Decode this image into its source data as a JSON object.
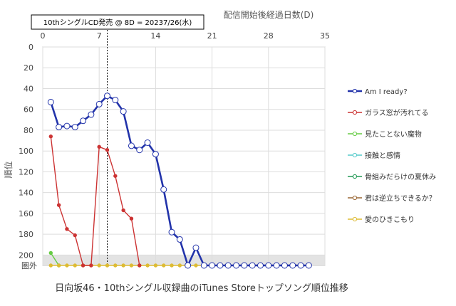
{
  "chart_data": {
    "type": "line",
    "title": "日向坂46・10thシングル収録曲のiTunes Storeトップソング順位推移",
    "xlabel": "配信開始後経過日数(D)",
    "ylabel": "順位",
    "xlim": [
      0,
      35
    ],
    "ylim": [
      0,
      210
    ],
    "y_inverted": true,
    "x_ticks": [
      0,
      7,
      14,
      21,
      28,
      35
    ],
    "y_ticks": [
      0,
      20,
      40,
      60,
      80,
      100,
      120,
      140,
      160,
      180,
      200
    ],
    "y_out_label": "圏外",
    "out_value": 210,
    "out_band": [
      200,
      210
    ],
    "grid": true,
    "legend_position": "right",
    "annotation": {
      "text": "10thシングルCD発売 @ 8D = 20237/26(水)",
      "x": 8
    },
    "series": [
      {
        "name": "Am I ready?",
        "color": "#2233aa",
        "points": [
          [
            1,
            53
          ],
          [
            2,
            77
          ],
          [
            3,
            76
          ],
          [
            4,
            77
          ],
          [
            5,
            71
          ],
          [
            6,
            65
          ],
          [
            7,
            55
          ],
          [
            8,
            47
          ],
          [
            9,
            51
          ],
          [
            10,
            62
          ],
          [
            11,
            95
          ],
          [
            12,
            99
          ],
          [
            13,
            92
          ],
          [
            14,
            103
          ],
          [
            15,
            137
          ],
          [
            16,
            178
          ],
          [
            17,
            185
          ],
          [
            18,
            210
          ],
          [
            19,
            193
          ],
          [
            20,
            210
          ],
          [
            21,
            210
          ],
          [
            22,
            210
          ],
          [
            23,
            210
          ],
          [
            24,
            210
          ],
          [
            25,
            210
          ],
          [
            26,
            210
          ],
          [
            27,
            210
          ],
          [
            28,
            210
          ],
          [
            29,
            210
          ],
          [
            30,
            210
          ],
          [
            31,
            210
          ],
          [
            32,
            210
          ],
          [
            33,
            210
          ]
        ]
      },
      {
        "name": "ガラス窓が汚れてる",
        "color": "#cc3333",
        "points": [
          [
            1,
            86
          ],
          [
            2,
            152
          ],
          [
            3,
            175
          ],
          [
            4,
            181
          ],
          [
            5,
            210
          ],
          [
            6,
            210
          ],
          [
            7,
            96
          ],
          [
            8,
            99
          ],
          [
            9,
            124
          ],
          [
            10,
            157
          ],
          [
            11,
            165
          ],
          [
            12,
            210
          ]
        ]
      },
      {
        "name": "見たことない魔物",
        "color": "#66cc44",
        "points": [
          [
            1,
            198
          ],
          [
            2,
            210
          ]
        ]
      },
      {
        "name": "接触と感情",
        "color": "#55cccc",
        "points": []
      },
      {
        "name": "骨組みだらけの夏休み",
        "color": "#229955",
        "points": []
      },
      {
        "name": "君は逆立ちできるか？",
        "color": "#996633",
        "points": [
          [
            20,
            210
          ],
          [
            21,
            210
          ],
          [
            22,
            210
          ],
          [
            23,
            210
          ],
          [
            24,
            210
          ],
          [
            25,
            210
          ],
          [
            26,
            210
          ],
          [
            27,
            210
          ],
          [
            28,
            210
          ],
          [
            29,
            210
          ],
          [
            30,
            210
          ],
          [
            31,
            210
          ],
          [
            32,
            210
          ],
          [
            33,
            210
          ]
        ]
      },
      {
        "name": "愛のひきこもり",
        "color": "#ddbb33",
        "points": [
          [
            1,
            210
          ],
          [
            2,
            210
          ],
          [
            3,
            210
          ],
          [
            4,
            210
          ],
          [
            5,
            210
          ],
          [
            6,
            210
          ],
          [
            7,
            210
          ],
          [
            8,
            210
          ],
          [
            9,
            210
          ],
          [
            10,
            210
          ],
          [
            11,
            210
          ],
          [
            12,
            210
          ],
          [
            13,
            210
          ],
          [
            14,
            210
          ],
          [
            15,
            210
          ],
          [
            16,
            210
          ],
          [
            17,
            210
          ],
          [
            18,
            210
          ],
          [
            19,
            210
          ],
          [
            20,
            210
          ],
          [
            21,
            210
          ],
          [
            22,
            210
          ],
          [
            23,
            210
          ],
          [
            24,
            210
          ],
          [
            25,
            210
          ],
          [
            26,
            210
          ],
          [
            27,
            210
          ],
          [
            28,
            210
          ],
          [
            29,
            210
          ],
          [
            30,
            210
          ],
          [
            31,
            210
          ],
          [
            32,
            210
          ],
          [
            33,
            210
          ]
        ]
      }
    ]
  }
}
